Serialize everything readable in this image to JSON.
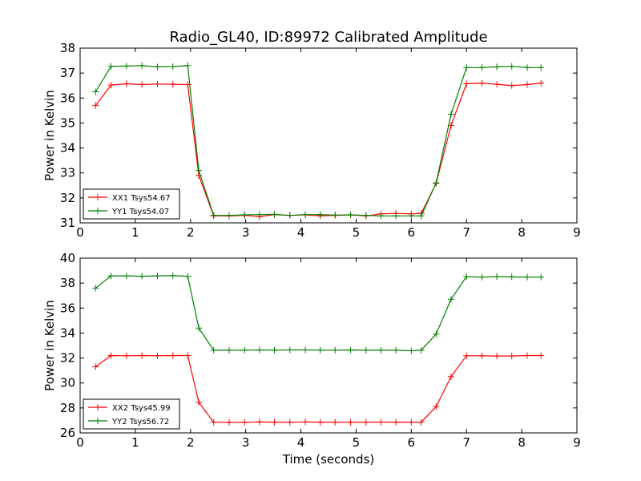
{
  "figure": {
    "title": "Radio_GL40, ID:89972 Calibrated Amplitude"
  },
  "chart_data": [
    {
      "type": "line",
      "title": "Radio_GL40, ID:89972 Calibrated Amplitude",
      "xlabel": "",
      "ylabel": "Power in Kelvin",
      "xlim": [
        0,
        9
      ],
      "ylim": [
        31,
        38
      ],
      "xticks": [
        "0",
        "1",
        "2",
        "3",
        "4",
        "5",
        "6",
        "7",
        "8",
        "9"
      ],
      "yticks": [
        "31",
        "32",
        "33",
        "34",
        "35",
        "36",
        "37",
        "38"
      ],
      "grid": false,
      "legend_position": "lower-left",
      "x": [
        0.28,
        0.56,
        0.84,
        1.12,
        1.4,
        1.68,
        1.95,
        2.15,
        2.42,
        2.7,
        2.98,
        3.25,
        3.52,
        3.8,
        4.08,
        4.35,
        4.62,
        4.9,
        5.18,
        5.45,
        5.72,
        6.0,
        6.18,
        6.45,
        6.72,
        7.0,
        7.28,
        7.55,
        7.82,
        8.1,
        8.35
      ],
      "series": [
        {
          "name": "XX1 Tsys54.67",
          "color": "#ff0000",
          "values": [
            35.7,
            36.52,
            36.57,
            36.54,
            36.56,
            36.55,
            36.54,
            32.9,
            31.28,
            31.28,
            31.3,
            31.25,
            31.33,
            31.3,
            31.32,
            31.28,
            31.3,
            31.32,
            31.28,
            31.36,
            31.38,
            31.36,
            31.38,
            32.58,
            34.9,
            36.57,
            36.6,
            36.55,
            36.5,
            36.54,
            36.6
          ]
        },
        {
          "name": "YY1 Tsys54.07",
          "color": "#008000",
          "values": [
            36.25,
            37.27,
            37.28,
            37.3,
            37.25,
            37.26,
            37.3,
            33.1,
            31.3,
            31.3,
            31.32,
            31.33,
            31.34,
            31.3,
            31.33,
            31.33,
            31.31,
            31.32,
            31.3,
            31.28,
            31.28,
            31.28,
            31.28,
            32.6,
            35.35,
            37.22,
            37.22,
            37.25,
            37.27,
            37.22,
            37.22
          ]
        }
      ]
    },
    {
      "type": "line",
      "title": "",
      "xlabel": "Time (seconds)",
      "ylabel": "Power in Kelvin",
      "xlim": [
        0,
        9
      ],
      "ylim": [
        26,
        40
      ],
      "xticks": [
        "0",
        "1",
        "2",
        "3",
        "4",
        "5",
        "6",
        "7",
        "8",
        "9"
      ],
      "yticks": [
        "26",
        "28",
        "30",
        "32",
        "34",
        "36",
        "38",
        "40"
      ],
      "grid": false,
      "legend_position": "lower-left",
      "x": [
        0.28,
        0.56,
        0.84,
        1.12,
        1.4,
        1.68,
        1.95,
        2.15,
        2.42,
        2.7,
        2.98,
        3.25,
        3.52,
        3.8,
        4.08,
        4.35,
        4.62,
        4.9,
        5.18,
        5.45,
        5.72,
        6.0,
        6.18,
        6.45,
        6.72,
        7.0,
        7.28,
        7.55,
        7.82,
        8.1,
        8.35
      ],
      "series": [
        {
          "name": "XX2 Tsys45.99",
          "color": "#ff0000",
          "values": [
            31.3,
            32.2,
            32.18,
            32.2,
            32.18,
            32.2,
            32.2,
            28.45,
            26.85,
            26.85,
            26.85,
            26.88,
            26.86,
            26.85,
            26.88,
            26.86,
            26.86,
            26.85,
            26.86,
            26.87,
            26.86,
            26.86,
            26.86,
            28.1,
            30.5,
            32.18,
            32.18,
            32.16,
            32.16,
            32.2,
            32.2
          ]
        },
        {
          "name": "YY2 Tsys56.72",
          "color": "#008000",
          "values": [
            37.6,
            38.58,
            38.58,
            38.55,
            38.58,
            38.6,
            38.55,
            34.4,
            32.62,
            32.62,
            32.63,
            32.64,
            32.63,
            32.65,
            32.65,
            32.63,
            32.63,
            32.64,
            32.62,
            32.62,
            32.62,
            32.58,
            32.62,
            33.92,
            36.7,
            38.52,
            38.48,
            38.52,
            38.5,
            38.48,
            38.48
          ]
        }
      ]
    }
  ]
}
